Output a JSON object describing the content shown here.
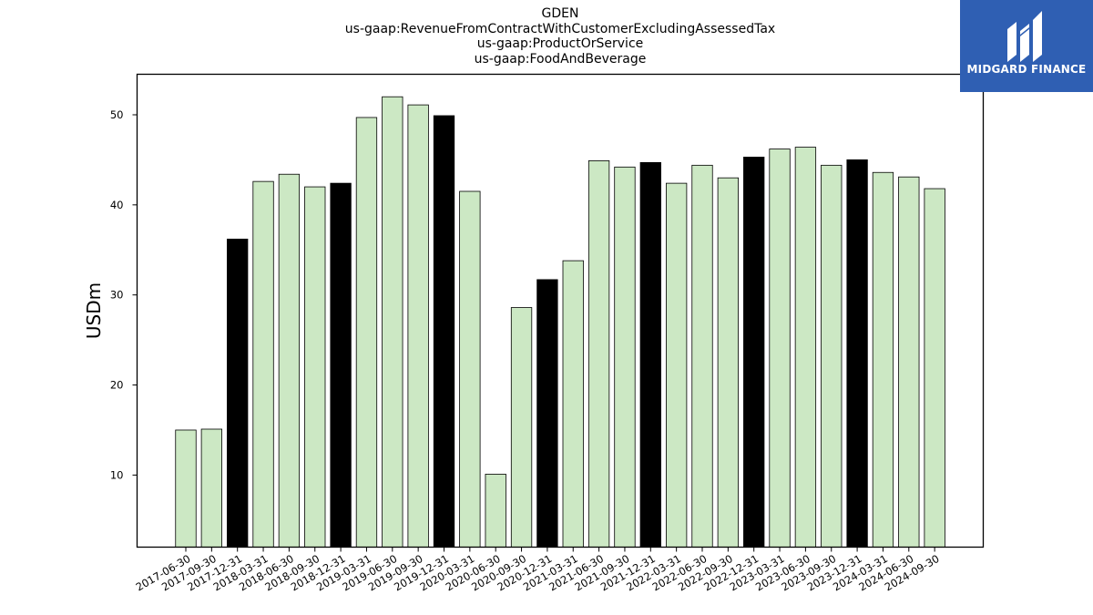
{
  "chart_data": {
    "type": "bar",
    "title_lines": [
      "GDEN",
      "us-gaap:RevenueFromContractWithCustomerExcludingAssessedTax",
      "us-gaap:ProductOrService",
      "us-gaap:FoodAndBeverage"
    ],
    "ylabel": "USDm",
    "xlabel": "",
    "ylim": [
      2.0,
      54.5
    ],
    "yticks": [
      10,
      20,
      30,
      40,
      50
    ],
    "grid": false,
    "categories": [
      "2017-06-30",
      "2017-09-30",
      "2017-12-31",
      "2018-03-31",
      "2018-06-30",
      "2018-09-30",
      "2018-12-31",
      "2019-03-31",
      "2019-06-30",
      "2019-09-30",
      "2019-12-31",
      "2020-03-31",
      "2020-06-30",
      "2020-09-30",
      "2020-12-31",
      "2021-03-31",
      "2021-06-30",
      "2021-09-30",
      "2021-12-31",
      "2022-03-31",
      "2022-06-30",
      "2022-09-30",
      "2022-12-31",
      "2023-03-31",
      "2023-06-30",
      "2023-09-30",
      "2023-12-31",
      "2024-03-31",
      "2024-06-30",
      "2024-09-30"
    ],
    "values": [
      15.0,
      15.1,
      36.2,
      42.6,
      43.4,
      42.0,
      42.4,
      49.7,
      52.0,
      51.1,
      49.9,
      41.5,
      10.1,
      28.6,
      31.7,
      33.8,
      44.9,
      44.2,
      44.7,
      42.4,
      44.4,
      43.0,
      45.3,
      46.2,
      46.4,
      44.4,
      45.0,
      43.6,
      43.1,
      41.8
    ],
    "highlighted": [
      false,
      false,
      true,
      false,
      false,
      false,
      true,
      false,
      false,
      false,
      true,
      false,
      false,
      false,
      true,
      false,
      false,
      false,
      true,
      false,
      false,
      false,
      true,
      false,
      false,
      false,
      true,
      false,
      false,
      false
    ],
    "colors": {
      "bar": "#cce8c4",
      "highlight": "#000000",
      "edge": "#000000"
    }
  },
  "logo": {
    "text": "MIDGARD FINANCE",
    "icon": "midgard-logo-icon",
    "background": "#2f5fb3"
  }
}
